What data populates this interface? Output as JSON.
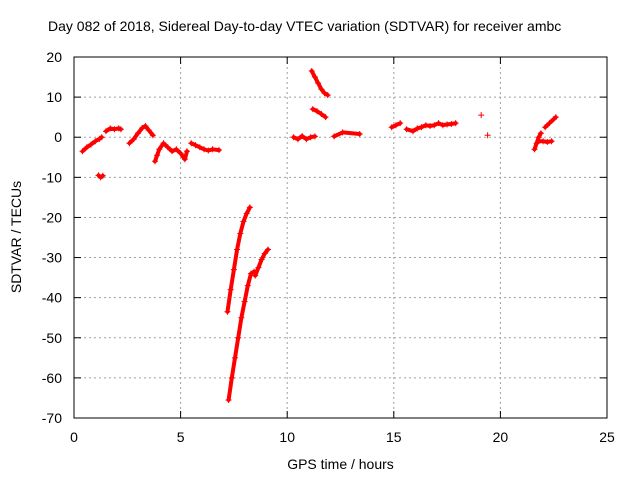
{
  "chart_data": {
    "type": "scatter",
    "title": "Day 082 of 2018, Sidereal Day-to-day VTEC variation (SDTVAR) for receiver ambc",
    "xlabel": "GPS time / hours",
    "ylabel": "SDTVAR / TECUs",
    "xlim": [
      0,
      25
    ],
    "ylim": [
      -70,
      20
    ],
    "xticks": [
      0,
      5,
      10,
      15,
      20,
      25
    ],
    "yticks": [
      20,
      10,
      0,
      -10,
      -20,
      -30,
      -40,
      -50,
      -60,
      -70
    ],
    "grid": true,
    "marker": "+",
    "color": "#ff0000",
    "series": [
      {
        "name": "SDTVAR",
        "segments": [
          [
            [
              0.4,
              -3.5
            ],
            [
              0.6,
              -2.5
            ],
            [
              0.8,
              -1.8
            ],
            [
              1.0,
              -1.0
            ],
            [
              1.2,
              -0.4
            ],
            [
              1.3,
              0.0
            ]
          ],
          [
            [
              1.15,
              -9.5
            ],
            [
              1.25,
              -10.0
            ],
            [
              1.35,
              -9.6
            ]
          ],
          [
            [
              1.5,
              1.5
            ],
            [
              1.7,
              2.2
            ],
            [
              1.9,
              2.0
            ],
            [
              2.1,
              2.2
            ],
            [
              2.2,
              2.0
            ]
          ],
          [
            [
              2.6,
              -1.5
            ],
            [
              2.8,
              -0.5
            ],
            [
              3.0,
              1.0
            ],
            [
              3.2,
              2.3
            ],
            [
              3.35,
              2.8
            ],
            [
              3.5,
              1.8
            ],
            [
              3.7,
              0.5
            ]
          ],
          [
            [
              3.8,
              -6.0
            ],
            [
              3.9,
              -4.5
            ],
            [
              4.0,
              -3.0
            ],
            [
              4.2,
              -1.5
            ],
            [
              4.4,
              -2.5
            ],
            [
              4.6,
              -3.5
            ],
            [
              4.8,
              -3.0
            ],
            [
              5.0,
              -4.0
            ],
            [
              5.2,
              -5.5
            ],
            [
              5.3,
              -3.5
            ]
          ],
          [
            [
              5.5,
              -1.5
            ],
            [
              5.7,
              -2.0
            ],
            [
              5.9,
              -2.5
            ],
            [
              6.1,
              -3.0
            ],
            [
              6.3,
              -3.3
            ],
            [
              6.5,
              -3.0
            ],
            [
              6.8,
              -3.2
            ]
          ],
          [
            [
              7.2,
              -43.5
            ],
            [
              7.35,
              -38
            ],
            [
              7.5,
              -33
            ],
            [
              7.65,
              -28
            ],
            [
              7.8,
              -24
            ],
            [
              7.95,
              -21
            ],
            [
              8.1,
              -19
            ],
            [
              8.25,
              -17.5
            ]
          ],
          [
            [
              7.25,
              -65.5
            ],
            [
              7.4,
              -60
            ],
            [
              7.55,
              -55
            ],
            [
              7.7,
              -50
            ],
            [
              7.85,
              -45
            ],
            [
              8.0,
              -41
            ],
            [
              8.15,
              -37
            ],
            [
              8.3,
              -34
            ],
            [
              8.45,
              -33.5
            ]
          ],
          [
            [
              8.5,
              -34.5
            ],
            [
              8.65,
              -32.5
            ],
            [
              8.8,
              -30.5
            ],
            [
              8.95,
              -29
            ],
            [
              9.1,
              -28
            ]
          ],
          [
            [
              10.3,
              0.0
            ],
            [
              10.5,
              -0.5
            ],
            [
              10.7,
              0.3
            ],
            [
              10.9,
              -0.5
            ],
            [
              11.1,
              0.0
            ],
            [
              11.3,
              0.2
            ]
          ],
          [
            [
              11.15,
              16.5
            ],
            [
              11.3,
              15.0
            ],
            [
              11.45,
              13.5
            ],
            [
              11.6,
              12.0
            ],
            [
              11.75,
              11.0
            ],
            [
              11.9,
              10.5
            ]
          ],
          [
            [
              11.2,
              7.0
            ],
            [
              11.4,
              6.5
            ],
            [
              11.6,
              5.8
            ],
            [
              11.8,
              5.0
            ]
          ],
          [
            [
              12.2,
              0.2
            ],
            [
              12.6,
              1.2
            ],
            [
              13.4,
              0.8
            ]
          ],
          [
            [
              14.9,
              2.5
            ],
            [
              15.1,
              3.0
            ],
            [
              15.3,
              3.5
            ]
          ],
          [
            [
              15.6,
              2.0
            ],
            [
              15.9,
              1.5
            ],
            [
              16.1,
              2.2
            ],
            [
              16.3,
              2.5
            ],
            [
              16.5,
              3.0
            ],
            [
              16.7,
              2.8
            ],
            [
              16.9,
              3.0
            ],
            [
              17.1,
              3.5
            ],
            [
              17.3,
              3.0
            ],
            [
              17.5,
              3.2
            ],
            [
              17.7,
              3.3
            ],
            [
              17.9,
              3.5
            ]
          ],
          [
            [
              19.1,
              5.5
            ],
            [
              19.4,
              0.5
            ]
          ],
          [
            [
              21.6,
              -3.0
            ],
            [
              21.7,
              -1.5
            ],
            [
              21.8,
              0.0
            ],
            [
              21.9,
              1.0
            ]
          ],
          [
            [
              21.8,
              -1.0
            ],
            [
              22.0,
              -1.0
            ],
            [
              22.2,
              -1.2
            ],
            [
              22.4,
              -1.0
            ]
          ],
          [
            [
              22.1,
              2.5
            ],
            [
              22.3,
              3.5
            ],
            [
              22.5,
              4.5
            ],
            [
              22.6,
              5.0
            ]
          ]
        ]
      }
    ]
  }
}
